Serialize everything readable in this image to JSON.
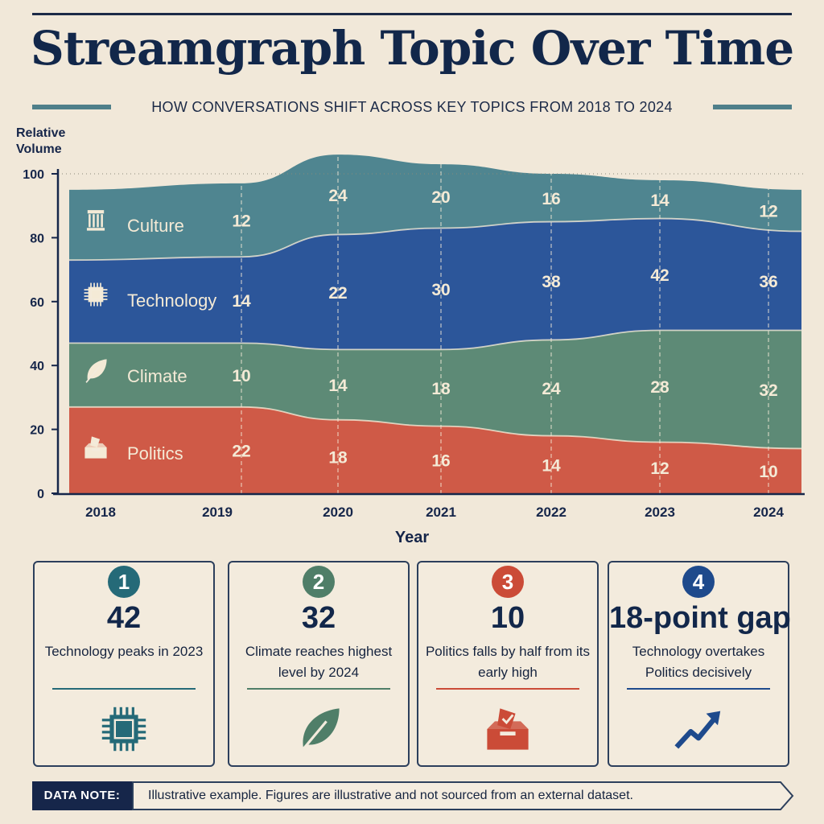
{
  "header": {
    "title": "Streamgraph Topic Over Time",
    "subtitle": "HOW CONVERSATIONS SHIFT ACROSS KEY TOPICS FROM 2018 TO 2024"
  },
  "colors": {
    "Politics": "#cf5a47",
    "Climate": "#5d8a76",
    "Technology": "#2c569a",
    "Culture": "#4f8590",
    "navy": "#16264a"
  },
  "chart_data": {
    "type": "area",
    "stacked": true,
    "ylabel": "Relative Volume",
    "xlabel": "Year",
    "ylim": [
      0,
      100
    ],
    "yticks": [
      0,
      20,
      40,
      60,
      80,
      100
    ],
    "x": [
      "2018",
      "2019",
      "2020",
      "2021",
      "2022",
      "2023",
      "2024"
    ],
    "series": [
      {
        "name": "Politics",
        "icon": "ballot-box-icon",
        "labels": [
          null,
          22,
          18,
          16,
          14,
          12,
          10
        ],
        "boundary": [
          27,
          27,
          23,
          21,
          18,
          16,
          14
        ]
      },
      {
        "name": "Climate",
        "icon": "leaf-icon",
        "labels": [
          null,
          10,
          14,
          18,
          24,
          28,
          32
        ],
        "boundary": [
          47,
          47,
          45,
          45,
          48,
          51,
          51
        ]
      },
      {
        "name": "Technology",
        "icon": "microchip-icon",
        "labels": [
          null,
          14,
          22,
          30,
          38,
          42,
          36
        ],
        "boundary": [
          73,
          74,
          81,
          83,
          85,
          86,
          82
        ]
      },
      {
        "name": "Culture",
        "icon": "pillar-icon",
        "labels": [
          null,
          12,
          24,
          20,
          16,
          14,
          12
        ],
        "boundary": [
          95,
          97,
          106,
          103,
          100,
          98,
          95
        ]
      }
    ],
    "grid": false,
    "legend": "inline-left"
  },
  "cards": [
    {
      "num": "1",
      "value": "42",
      "desc": "Technology peaks in 2023",
      "icon": "microchip-icon",
      "color": "#256a78"
    },
    {
      "num": "2",
      "value": "32",
      "desc": "Climate reaches highest level by 2024",
      "icon": "leaf-icon",
      "color": "#4f7e68"
    },
    {
      "num": "3",
      "value": "10",
      "desc": "Politics falls by half from its early high",
      "icon": "ballot-box-icon",
      "color": "#cb4b37"
    },
    {
      "num": "4",
      "value": "18-point gap",
      "desc": "Technology overtakes Politics decisively",
      "icon": "trend-up-icon",
      "color": "#1e4a8c"
    }
  ],
  "note": {
    "label": "DATA NOTE:",
    "text": "Illustrative example. Figures are illustrative and not sourced from an external dataset."
  }
}
